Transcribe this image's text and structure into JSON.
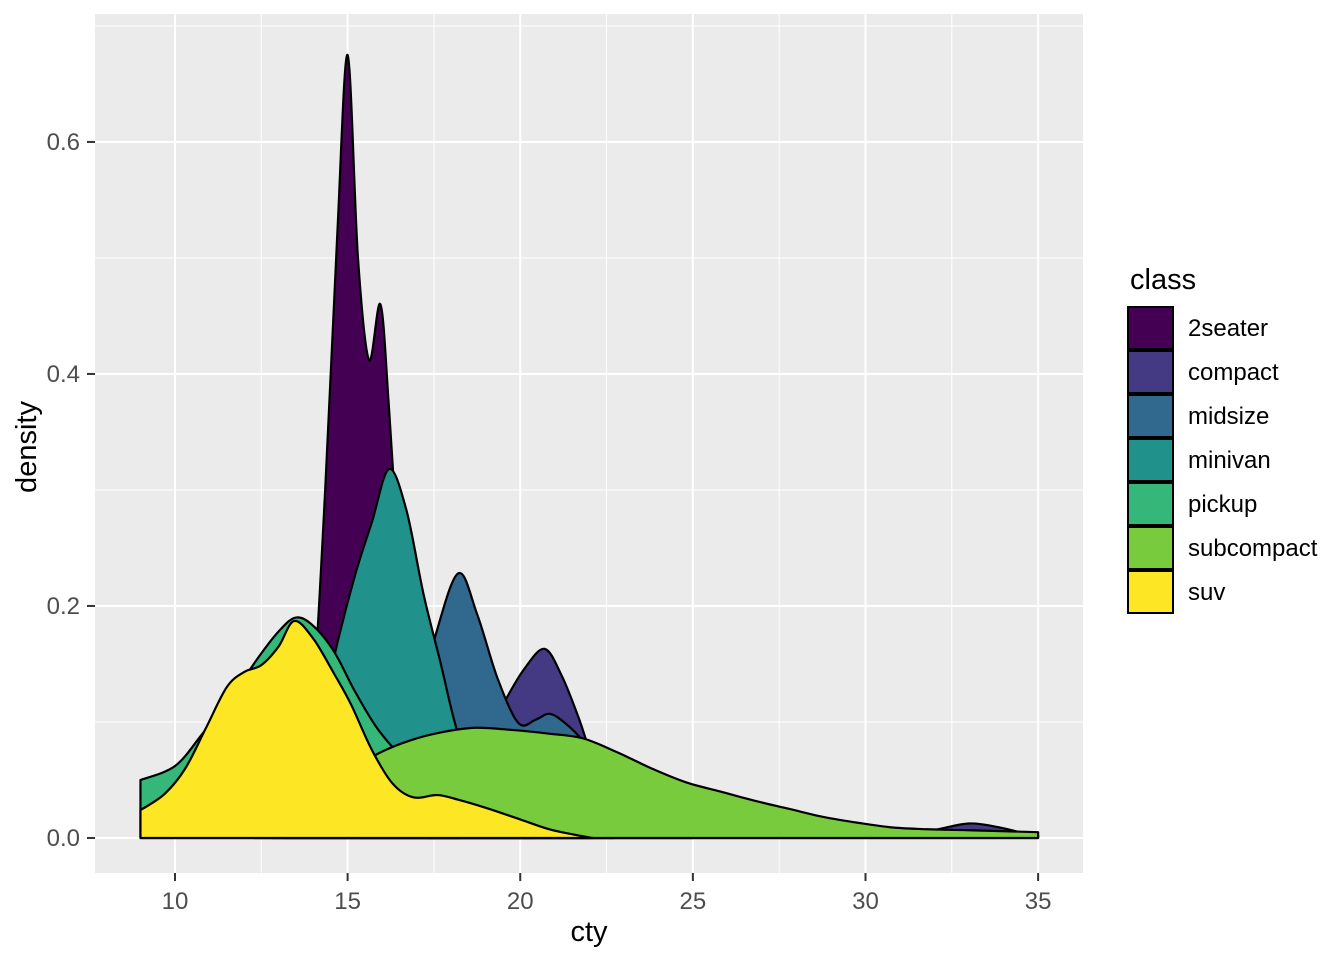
{
  "chart_data": {
    "type": "area",
    "subtype": "density",
    "title": "",
    "xlabel": "cty",
    "ylabel": "density",
    "xlim": [
      7.683,
      36.3
    ],
    "ylim": [
      -0.0302,
      0.7103
    ],
    "x_ticks": {
      "values": [
        10,
        15,
        20,
        25,
        30,
        35
      ],
      "labels": [
        "10",
        "15",
        "20",
        "25",
        "30",
        "35"
      ]
    },
    "y_ticks": {
      "values": [
        0.0,
        0.2,
        0.4,
        0.6
      ],
      "labels": [
        "0.0",
        "0.2",
        "0.4",
        "0.6"
      ]
    },
    "x_minor": [
      12.5,
      17.5,
      22.5,
      27.5,
      32.5
    ],
    "y_minor": [
      0.1,
      0.3,
      0.5,
      0.7
    ],
    "grid": true,
    "legend": {
      "title": "class",
      "position": "right"
    },
    "colors": {
      "panel_background": "#EBEBEB",
      "gridline": "#FFFFFF",
      "tick_mark": "#333333",
      "axis_text": "#4D4D4D",
      "title_text": "#000000",
      "outline": "#000000"
    },
    "series": [
      {
        "name": "2seater",
        "color": "#440154",
        "points": [
          [
            13.2,
            0
          ],
          [
            13.6,
            0.02
          ],
          [
            14.0,
            0.12
          ],
          [
            14.35,
            0.3
          ],
          [
            14.7,
            0.52
          ],
          [
            15.0,
            0.675
          ],
          [
            15.3,
            0.5
          ],
          [
            15.62,
            0.412
          ],
          [
            15.95,
            0.46
          ],
          [
            16.2,
            0.37
          ],
          [
            16.55,
            0.21
          ],
          [
            16.9,
            0.095
          ],
          [
            17.3,
            0.035
          ],
          [
            17.7,
            0.01
          ],
          [
            18.2,
            0
          ]
        ]
      },
      {
        "name": "compact",
        "color": "#443983",
        "points": [
          [
            17.3,
            0
          ],
          [
            18.0,
            0.028
          ],
          [
            18.8,
            0.075
          ],
          [
            19.5,
            0.115
          ],
          [
            20.1,
            0.145
          ],
          [
            20.7,
            0.163
          ],
          [
            21.2,
            0.14
          ],
          [
            21.7,
            0.103
          ],
          [
            22.1,
            0.068
          ],
          [
            22.6,
            0.038
          ],
          [
            23.2,
            0.017
          ],
          [
            24.0,
            0.007
          ],
          [
            25.0,
            0.003
          ],
          [
            26.5,
            0.001
          ],
          [
            28.0,
            0.001
          ],
          [
            29.5,
            0.001
          ],
          [
            31.0,
            0.003
          ],
          [
            32.0,
            0.007
          ],
          [
            33.0,
            0.0125
          ],
          [
            33.9,
            0.009
          ],
          [
            34.6,
            0.004
          ],
          [
            35.0,
            0.0025
          ]
        ]
      },
      {
        "name": "midsize",
        "color": "#31688E",
        "points": [
          [
            15.4,
            0
          ],
          [
            16.1,
            0.03
          ],
          [
            16.8,
            0.09
          ],
          [
            17.5,
            0.17
          ],
          [
            18.2,
            0.228
          ],
          [
            18.75,
            0.193
          ],
          [
            19.35,
            0.137
          ],
          [
            19.95,
            0.099
          ],
          [
            20.45,
            0.102
          ],
          [
            20.85,
            0.107
          ],
          [
            21.3,
            0.099
          ],
          [
            21.8,
            0.084
          ],
          [
            22.3,
            0.06
          ],
          [
            22.9,
            0.034
          ],
          [
            23.5,
            0.014
          ],
          [
            24.2,
            0.004
          ],
          [
            25.0,
            0
          ]
        ]
      },
      {
        "name": "minivan",
        "color": "#21918C",
        "points": [
          [
            12.8,
            0
          ],
          [
            13.4,
            0.025
          ],
          [
            14.0,
            0.07
          ],
          [
            14.6,
            0.155
          ],
          [
            15.2,
            0.225
          ],
          [
            15.7,
            0.272
          ],
          [
            16.2,
            0.318
          ],
          [
            16.7,
            0.283
          ],
          [
            17.2,
            0.21
          ],
          [
            17.7,
            0.15
          ],
          [
            18.1,
            0.1
          ],
          [
            18.6,
            0.052
          ],
          [
            19.2,
            0.018
          ],
          [
            19.8,
            0.004
          ],
          [
            20.4,
            0
          ]
        ]
      },
      {
        "name": "pickup",
        "color": "#35B779",
        "points": [
          [
            9,
            0.05
          ],
          [
            10,
            0.062
          ],
          [
            10.8,
            0.09
          ],
          [
            11.6,
            0.12
          ],
          [
            12.4,
            0.155
          ],
          [
            13.0,
            0.178
          ],
          [
            13.5,
            0.19
          ],
          [
            14.0,
            0.183
          ],
          [
            14.6,
            0.161
          ],
          [
            15.2,
            0.127
          ],
          [
            15.8,
            0.097
          ],
          [
            16.4,
            0.075
          ],
          [
            17.0,
            0.058
          ],
          [
            17.7,
            0.047
          ],
          [
            18.4,
            0.037
          ],
          [
            19.2,
            0.025
          ],
          [
            20.0,
            0.014
          ],
          [
            21.0,
            0.005
          ],
          [
            22.0,
            0.001
          ],
          [
            22.7,
            0
          ]
        ]
      },
      {
        "name": "subcompact",
        "color": "#77CB3D",
        "points": [
          [
            12.3,
            0
          ],
          [
            13.2,
            0.012
          ],
          [
            14.2,
            0.034
          ],
          [
            15.2,
            0.059
          ],
          [
            15.9,
            0.073
          ],
          [
            16.8,
            0.084
          ],
          [
            17.7,
            0.091
          ],
          [
            18.7,
            0.095
          ],
          [
            19.8,
            0.093
          ],
          [
            20.8,
            0.09
          ],
          [
            21.8,
            0.086
          ],
          [
            22.8,
            0.074
          ],
          [
            23.8,
            0.06
          ],
          [
            24.8,
            0.048
          ],
          [
            25.8,
            0.04
          ],
          [
            26.8,
            0.032
          ],
          [
            27.8,
            0.025
          ],
          [
            28.8,
            0.018
          ],
          [
            29.8,
            0.013
          ],
          [
            30.8,
            0.009
          ],
          [
            31.8,
            0.0075
          ],
          [
            32.8,
            0.0068
          ],
          [
            33.8,
            0.006
          ],
          [
            35.0,
            0.005
          ]
        ]
      },
      {
        "name": "suv",
        "color": "#FDE725",
        "points": [
          [
            9,
            0.024
          ],
          [
            9.7,
            0.038
          ],
          [
            10.3,
            0.06
          ],
          [
            10.9,
            0.095
          ],
          [
            11.5,
            0.13
          ],
          [
            12.0,
            0.143
          ],
          [
            12.5,
            0.149
          ],
          [
            13.0,
            0.165
          ],
          [
            13.45,
            0.187
          ],
          [
            14.0,
            0.172
          ],
          [
            14.6,
            0.142
          ],
          [
            15.1,
            0.115
          ],
          [
            15.7,
            0.076
          ],
          [
            16.3,
            0.047
          ],
          [
            16.9,
            0.035
          ],
          [
            17.6,
            0.037
          ],
          [
            18.2,
            0.033
          ],
          [
            19.0,
            0.026
          ],
          [
            20.0,
            0.016
          ],
          [
            20.9,
            0.007
          ],
          [
            21.9,
            0.001
          ],
          [
            22.1,
            0
          ]
        ]
      }
    ]
  }
}
